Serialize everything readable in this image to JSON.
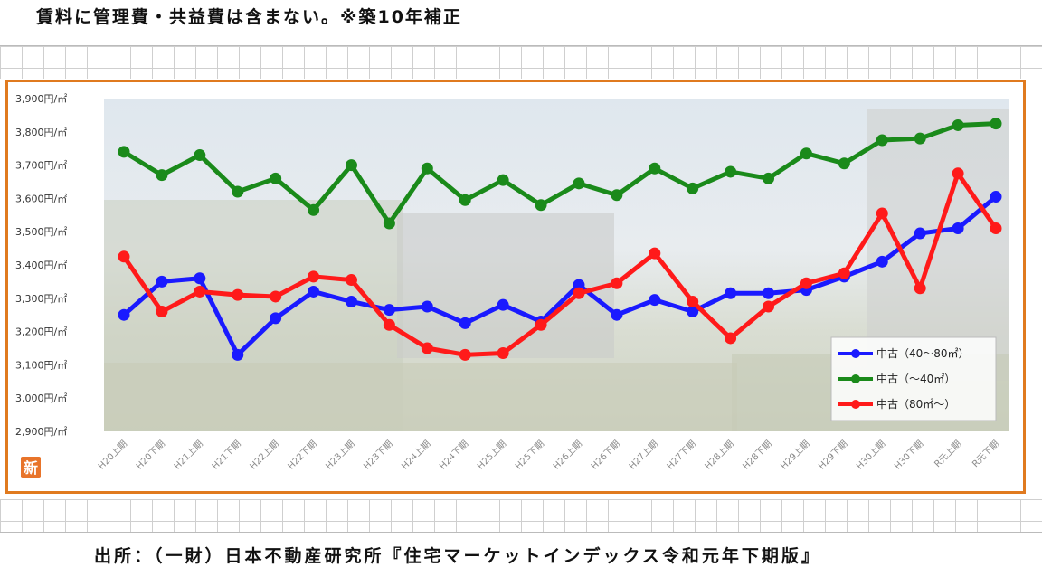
{
  "header_note": "賃料に管理費・共益費は含まない。※築10年補正",
  "source_note": "出所：（一財）日本不動産研究所『住宅マーケットインデックス令和元年下期版』",
  "badge_label": "新",
  "colors": {
    "frame": "#e07a1f",
    "series_blue": "#1a1aff",
    "series_green": "#1a8a1a",
    "series_red": "#ff1a1a",
    "badge": "#e8742a"
  },
  "chart_data": {
    "type": "line",
    "title": "",
    "xlabel": "",
    "ylabel": "",
    "ylim": [
      2900,
      3900
    ],
    "yticks": [
      2900,
      3000,
      3100,
      3200,
      3300,
      3400,
      3500,
      3600,
      3700,
      3800,
      3900
    ],
    "ytick_labels": [
      "2,900円/㎡",
      "3,000円/㎡",
      "3,100円/㎡",
      "3,200円/㎡",
      "3,300円/㎡",
      "3,400円/㎡",
      "3,500円/㎡",
      "3,600円/㎡",
      "3,700円/㎡",
      "3,800円/㎡",
      "3,900円/㎡"
    ],
    "categories": [
      "H20上期",
      "H20下期",
      "H21上期",
      "H21下期",
      "H22上期",
      "H22下期",
      "H23上期",
      "H23下期",
      "H24上期",
      "H24下期",
      "H25上期",
      "H25下期",
      "H26上期",
      "H26下期",
      "H27上期",
      "H27下期",
      "H28上期",
      "H28下期",
      "H29上期",
      "H29下期",
      "H30上期",
      "H30下期",
      "R元上期",
      "R元下期"
    ],
    "legend_position": "bottom-right",
    "grid": false,
    "series": [
      {
        "name": "中古（40～80㎡）",
        "color": "#1a1aff",
        "values": [
          3250,
          3350,
          3360,
          3130,
          3240,
          3320,
          3290,
          3265,
          3275,
          3225,
          3280,
          3230,
          3340,
          3250,
          3295,
          3260,
          3315,
          3315,
          3325,
          3365,
          3410,
          3495,
          3510,
          3605
        ]
      },
      {
        "name": "中古（～40㎡）",
        "color": "#1a8a1a",
        "values": [
          3740,
          3670,
          3730,
          3620,
          3660,
          3565,
          3700,
          3525,
          3690,
          3595,
          3655,
          3580,
          3645,
          3610,
          3690,
          3630,
          3680,
          3660,
          3735,
          3705,
          3775,
          3780,
          3820,
          3825
        ]
      },
      {
        "name": "中古（80㎡～）",
        "color": "#ff1a1a",
        "values": [
          3425,
          3260,
          3320,
          3310,
          3305,
          3365,
          3355,
          3220,
          3150,
          3130,
          3135,
          3220,
          3315,
          3345,
          3435,
          3290,
          3180,
          3275,
          3345,
          3375,
          3555,
          3330,
          3675,
          3510
        ]
      }
    ]
  }
}
